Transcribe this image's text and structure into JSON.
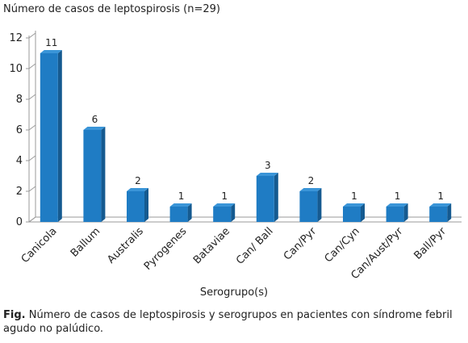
{
  "chart_data": {
    "type": "bar",
    "title": "Número de casos de leptospirosis (n=29)",
    "xlabel": "Serogrupo(s)",
    "ylabel": "",
    "categories": [
      "Canicola",
      "Ballum",
      "Australis",
      "Pyrogenes",
      "Bataviae",
      "Can/ Ball",
      "Can/Pyr",
      "Can/Cyn",
      "Can/Aust/Pyr",
      "Ball/Pyr"
    ],
    "values": [
      11,
      6,
      2,
      1,
      1,
      3,
      2,
      1,
      1,
      1
    ],
    "ylim": [
      0,
      12
    ],
    "yticks": [
      0,
      2,
      4,
      6,
      8,
      10,
      12
    ],
    "grid": false,
    "legend": "none",
    "bar_color": "#1f7cc4",
    "bar_side_color": "#155a90",
    "bar_top_color": "#3a95d8",
    "axis_color": "#9a9a9a"
  },
  "caption": {
    "prefix": "Fig.",
    "text": " Número de casos de leptospirosis y serogrupos en pacientes con síndrome febril agudo no palúdico."
  }
}
